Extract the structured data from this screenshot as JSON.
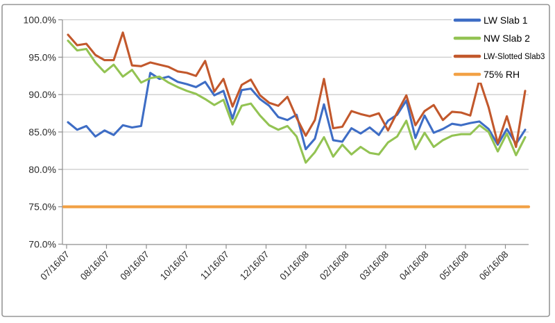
{
  "chart_data": {
    "type": "line",
    "title": "",
    "x_start": "07/16/07",
    "point_interval_days": 7,
    "x_tick_labels": [
      "07/16/07",
      "08/16/07",
      "09/16/07",
      "10/16/07",
      "11/16/07",
      "12/16/07",
      "01/16/08",
      "02/16/08",
      "03/16/08",
      "04/16/08",
      "05/16/08",
      "06/16/08"
    ],
    "y_tick_labels": [
      "100.0%",
      "95.0%",
      "90.0%",
      "85.0%",
      "80.0%",
      "75.0%",
      "70.0%"
    ],
    "ylim": [
      70,
      100
    ],
    "y_tick_step": 5,
    "grid": "horizontal",
    "legend_position": "top-right-inside",
    "series": [
      {
        "name": "LW Slab 1",
        "color": "#3E6DC5",
        "legend_font_px": 14,
        "values": [
          86.3,
          85.3,
          85.8,
          84.4,
          85.2,
          84.6,
          85.9,
          85.6,
          85.8,
          92.9,
          92.1,
          92.4,
          91.7,
          91.4,
          91.0,
          91.7,
          89.9,
          90.5,
          86.8,
          90.6,
          90.8,
          89.4,
          88.5,
          87.0,
          86.6,
          87.3,
          82.7,
          84.1,
          88.7,
          83.9,
          83.7,
          85.5,
          84.8,
          85.6,
          84.6,
          86.5,
          87.3,
          89.2,
          84.2,
          87.2,
          84.9,
          85.4,
          86.1,
          85.9,
          86.2,
          86.4,
          85.4,
          83.3,
          85.4,
          83.4,
          85.3
        ]
      },
      {
        "name": "NW Slab 2",
        "color": "#93C353",
        "legend_font_px": 14,
        "values": [
          97.2,
          95.9,
          96.1,
          94.3,
          93.0,
          94.0,
          92.4,
          93.3,
          91.6,
          92.2,
          92.4,
          91.6,
          91.0,
          90.5,
          90.1,
          89.4,
          88.6,
          89.3,
          86.0,
          88.5,
          88.8,
          87.2,
          85.9,
          85.3,
          85.8,
          84.4,
          80.9,
          82.3,
          84.3,
          81.7,
          83.3,
          82.0,
          83.0,
          82.2,
          82.0,
          83.6,
          84.4,
          86.5,
          82.7,
          84.9,
          83.0,
          83.9,
          84.5,
          84.7,
          84.7,
          85.9,
          85.0,
          82.4,
          84.8,
          81.9,
          84.3
        ]
      },
      {
        "name": "LW-Slotted Slab3",
        "color": "#C2582C",
        "legend_font_px": 11.5,
        "values": [
          98.0,
          96.6,
          96.8,
          95.3,
          94.6,
          94.6,
          98.3,
          93.9,
          93.8,
          94.3,
          94.0,
          93.7,
          93.1,
          92.9,
          92.5,
          94.5,
          90.4,
          92.1,
          88.4,
          91.3,
          92.0,
          89.9,
          88.9,
          88.5,
          89.7,
          86.9,
          84.5,
          86.6,
          92.1,
          85.5,
          85.7,
          87.8,
          87.4,
          87.1,
          87.5,
          85.2,
          87.6,
          89.9,
          85.9,
          87.8,
          88.6,
          86.6,
          87.7,
          87.6,
          87.2,
          92.0,
          88.3,
          83.5,
          87.1,
          83.0,
          90.5
        ]
      },
      {
        "name": "75% RH",
        "color": "#F2A145",
        "legend_font_px": 14,
        "constant": 75
      }
    ],
    "style": {
      "background": "#FFFFFF",
      "grid_color": "#C4C4C4",
      "axis_color": "#8E8E8E",
      "text_color": "#2B2B2B",
      "border_color": "#969696",
      "legend_background": "#FFFFFF"
    }
  }
}
